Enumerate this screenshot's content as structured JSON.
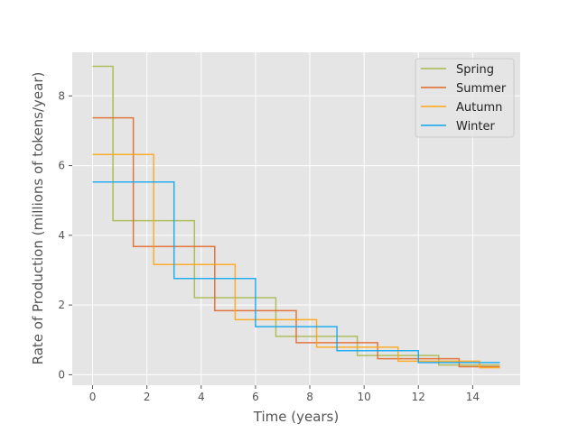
{
  "chart_data": {
    "type": "line",
    "step": "post",
    "title": "",
    "xlabel": "Time (years)",
    "ylabel": "Rate of Production (millions of tokens/year)",
    "xlim": [
      -0.75,
      15.75
    ],
    "ylim": [
      -0.3,
      9.25
    ],
    "xticks": [
      0,
      2,
      4,
      6,
      8,
      10,
      12,
      14
    ],
    "yticks": [
      0,
      2,
      4,
      6,
      8
    ],
    "grid": true,
    "legend": "top-right",
    "series": [
      {
        "name": "Spring",
        "color": "#a9b84e",
        "x": [
          0,
          0.75,
          3.75,
          6.75,
          9.75,
          12.75,
          15
        ],
        "y": [
          8.85,
          4.42,
          2.21,
          1.1,
          0.55,
          0.28,
          0.28
        ]
      },
      {
        "name": "Summer",
        "color": "#e2692a",
        "x": [
          0,
          1.5,
          4.5,
          7.5,
          10.5,
          13.5,
          15
        ],
        "y": [
          7.37,
          3.68,
          1.84,
          0.92,
          0.46,
          0.23,
          0.23
        ]
      },
      {
        "name": "Autumn",
        "color": "#ffa516",
        "x": [
          0,
          2.25,
          5.25,
          8.25,
          11.25,
          14.25,
          15
        ],
        "y": [
          6.32,
          3.16,
          1.58,
          0.79,
          0.39,
          0.2,
          0.2
        ]
      },
      {
        "name": "Winter",
        "color": "#0fa7f0",
        "x": [
          0,
          3,
          6,
          9,
          12,
          15
        ],
        "y": [
          5.53,
          2.76,
          1.38,
          0.69,
          0.35,
          0.35
        ]
      }
    ]
  }
}
